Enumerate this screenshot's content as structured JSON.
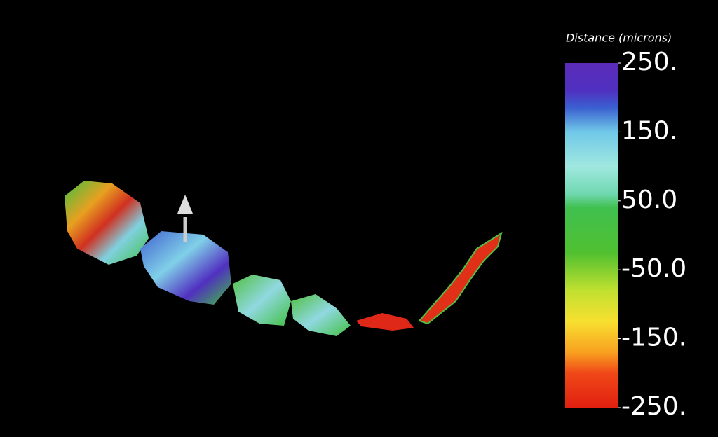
{
  "colorbar": {
    "title": "Distance (microns)",
    "range": [
      -250,
      250
    ],
    "ticks": [
      {
        "value": 250,
        "label": "250."
      },
      {
        "value": 150,
        "label": "150."
      },
      {
        "value": 50,
        "label": "50.0"
      },
      {
        "value": -50,
        "label": "-50.0"
      },
      {
        "value": -150,
        "label": "-150."
      },
      {
        "value": -250,
        "label": "-250."
      }
    ]
  }
}
